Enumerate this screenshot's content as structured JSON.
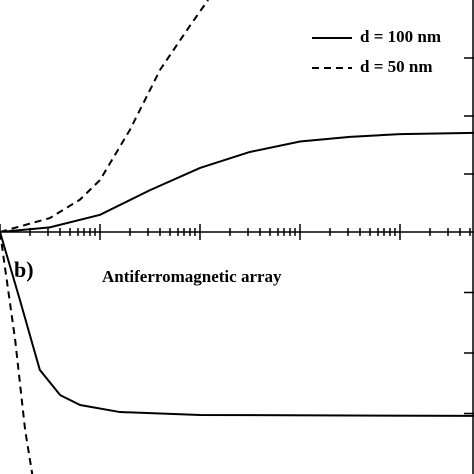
{
  "chart_data": [
    {
      "type": "line",
      "xlim": [
        0,
        10
      ],
      "ylim": [
        0,
        10
      ],
      "yticks": [
        2.5,
        5,
        7.5
      ],
      "x": [
        0,
        1.05,
        2.11,
        3.16,
        4.22,
        5.27,
        6.33,
        7.38,
        8.44,
        10
      ],
      "series": [
        {
          "name": "d = 100 nm",
          "color": "#000",
          "dash": "solid",
          "values": [
            0,
            0.2,
            0.74,
            1.8,
            2.76,
            3.45,
            3.9,
            4.1,
            4.22,
            4.27
          ]
        },
        {
          "name": "d = 50 nm",
          "color": "#000",
          "dash": "dashed",
          "x": [
            0,
            1.05,
            1.69,
            2.11,
            2.74,
            3.38,
            4.01,
            4.39
          ],
          "values": [
            0,
            0.6,
            1.4,
            2.24,
            4.4,
            7.0,
            8.9,
            10
          ]
        }
      ]
    },
    {
      "type": "line",
      "title": "Antiferromagnetic array",
      "panel_label": "b)",
      "xlim": [
        0,
        10
      ],
      "ylim": [
        -10,
        0
      ],
      "yticks": [
        -2.5,
        -5,
        -7.5
      ],
      "x": [
        0,
        0.42,
        0.84,
        1.27,
        1.69,
        2.53,
        4.22,
        10
      ],
      "series": [
        {
          "color": "#000",
          "dash": "solid",
          "values": [
            0,
            -2.81,
            -5.7,
            -6.74,
            -7.15,
            -7.44,
            -7.56,
            -7.6
          ]
        },
        {
          "color": "#000",
          "dash": "dashed",
          "x": [
            0,
            0.32,
            0.53,
            0.68
          ],
          "values": [
            0,
            -4.46,
            -8.18,
            -10
          ]
        }
      ]
    }
  ]
}
